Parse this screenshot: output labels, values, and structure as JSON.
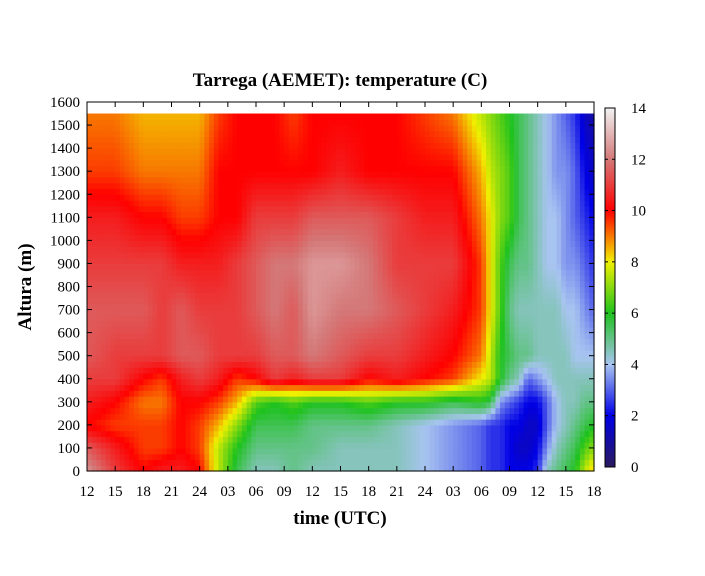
{
  "chart_data": {
    "type": "heatmap",
    "title": "Tarrega (AEMET): temperature (C)",
    "xlabel": "time (UTC)",
    "ylabel": "Altura (m)",
    "x_ticks": [
      "12",
      "15",
      "18",
      "21",
      "24",
      "03",
      "06",
      "09",
      "12",
      "15",
      "18",
      "21",
      "24",
      "03",
      "06",
      "09",
      "12",
      "15",
      "18"
    ],
    "x_range_hours": [
      0,
      54
    ],
    "ylim": [
      0,
      1600
    ],
    "y_ticks": [
      0,
      100,
      200,
      300,
      400,
      500,
      600,
      700,
      800,
      900,
      1000,
      1100,
      1200,
      1300,
      1400,
      1500,
      1600
    ],
    "data_top_altitude": 1550,
    "colorbar": {
      "range": [
        0,
        14
      ],
      "ticks": [
        0,
        2,
        4,
        6,
        8,
        10,
        12,
        14
      ],
      "colors": [
        "#2a1a5e",
        "#0000e6",
        "#a8c4f0",
        "#1ec21e",
        "#f0f000",
        "#ff0000",
        "#d47878",
        "#f2f2f2"
      ]
    },
    "temperature_profiles": {
      "altitudes": [
        0,
        100,
        200,
        300,
        400,
        500,
        700,
        900,
        1100,
        1300,
        1550
      ],
      "times": [
        0,
        3,
        6,
        8,
        10,
        12,
        14,
        16,
        18,
        20,
        22,
        24,
        27,
        30,
        33,
        36,
        39,
        42,
        43,
        44,
        45,
        46,
        47,
        48,
        49,
        50,
        51,
        52,
        53,
        54
      ],
      "columns": [
        [
          12.5,
          11.5,
          10.0,
          10.5,
          11.0,
          11.5,
          11.5,
          11.0,
          10.5,
          9.5,
          9.0
        ],
        [
          11.0,
          10.5,
          9.5,
          10.0,
          11.0,
          11.0,
          11.5,
          11.0,
          10.5,
          9.5,
          9.0
        ],
        [
          10.0,
          9.5,
          9.5,
          9.0,
          10.0,
          11.0,
          11.5,
          11.0,
          10.0,
          9.0,
          8.5
        ],
        [
          10.5,
          9.5,
          9.5,
          9.0,
          9.5,
          11.0,
          11.0,
          11.0,
          10.0,
          9.0,
          8.5
        ],
        [
          10.5,
          10.0,
          10.0,
          10.0,
          10.5,
          11.5,
          11.5,
          10.5,
          9.5,
          9.0,
          8.5
        ],
        [
          10.0,
          9.5,
          9.5,
          10.0,
          11.0,
          11.5,
          11.0,
          10.5,
          9.5,
          9.0,
          8.5
        ],
        [
          7.5,
          7.5,
          8.5,
          9.5,
          10.5,
          11.0,
          11.0,
          10.5,
          10.0,
          10.0,
          9.5
        ],
        [
          5.5,
          6.0,
          7.0,
          8.5,
          9.5,
          11.0,
          11.0,
          11.0,
          10.0,
          10.0,
          10.0
        ],
        [
          4.5,
          5.0,
          5.5,
          6.5,
          10.0,
          11.0,
          11.5,
          11.5,
          11.0,
          10.0,
          10.0
        ],
        [
          4.5,
          5.0,
          5.5,
          6.0,
          11.0,
          11.5,
          12.0,
          12.0,
          11.0,
          10.0,
          10.0
        ],
        [
          5.0,
          5.0,
          5.5,
          6.5,
          10.5,
          11.5,
          11.5,
          12.0,
          11.0,
          10.0,
          9.5
        ],
        [
          4.5,
          5.0,
          5.0,
          6.0,
          11.0,
          12.0,
          12.5,
          12.5,
          11.5,
          10.0,
          10.0
        ],
        [
          4.5,
          4.5,
          5.0,
          6.0,
          11.0,
          11.5,
          12.0,
          12.5,
          11.5,
          10.5,
          10.0
        ],
        [
          4.5,
          4.5,
          5.0,
          6.5,
          10.0,
          11.0,
          12.0,
          12.0,
          11.5,
          10.0,
          10.0
        ],
        [
          4.5,
          4.5,
          4.5,
          6.0,
          10.5,
          11.0,
          11.5,
          11.0,
          11.0,
          10.0,
          10.0
        ],
        [
          4.0,
          4.0,
          4.0,
          6.0,
          10.0,
          10.5,
          11.0,
          11.0,
          10.5,
          10.0,
          9.5
        ],
        [
          3.5,
          3.5,
          3.5,
          5.5,
          9.5,
          10.0,
          10.5,
          11.0,
          10.5,
          10.0,
          9.0
        ],
        [
          3.0,
          3.0,
          3.0,
          6.0,
          8.0,
          9.0,
          9.5,
          9.5,
          9.0,
          8.5,
          7.5
        ],
        [
          2.5,
          2.5,
          2.5,
          5.5,
          7.5,
          7.5,
          8.0,
          8.0,
          8.0,
          7.5,
          7.0
        ],
        [
          2.5,
          2.5,
          2.5,
          3.5,
          6.0,
          6.0,
          6.5,
          6.5,
          7.0,
          7.0,
          6.5
        ],
        [
          2.0,
          2.0,
          2.0,
          3.0,
          5.0,
          5.5,
          5.0,
          5.5,
          6.5,
          6.5,
          6.0
        ],
        [
          2.0,
          1.5,
          2.0,
          2.5,
          4.5,
          5.0,
          4.5,
          5.0,
          5.5,
          5.5,
          5.5
        ],
        [
          2.0,
          1.5,
          1.5,
          2.0,
          3.0,
          5.0,
          4.5,
          5.0,
          5.0,
          5.0,
          5.0
        ],
        [
          2.5,
          2.0,
          1.5,
          2.0,
          3.5,
          4.5,
          4.5,
          4.5,
          4.5,
          4.5,
          4.5
        ],
        [
          4.5,
          3.5,
          3.0,
          3.0,
          4.0,
          4.5,
          4.5,
          4.0,
          4.0,
          4.0,
          4.0
        ],
        [
          5.0,
          4.5,
          4.0,
          4.0,
          4.5,
          4.5,
          4.5,
          4.0,
          4.0,
          3.5,
          3.5
        ],
        [
          5.5,
          5.0,
          4.5,
          4.5,
          4.5,
          4.5,
          4.0,
          3.5,
          3.5,
          3.5,
          3.0
        ],
        [
          6.0,
          5.5,
          5.0,
          4.5,
          4.5,
          4.0,
          4.0,
          3.5,
          3.0,
          3.0,
          2.5
        ],
        [
          7.5,
          6.5,
          5.5,
          5.0,
          4.5,
          4.0,
          3.5,
          3.0,
          2.5,
          2.0,
          1.5
        ],
        [
          8.5,
          7.0,
          6.0,
          5.0,
          4.5,
          4.0,
          3.0,
          2.5,
          2.0,
          1.5,
          1.0
        ]
      ]
    },
    "grid": false,
    "legend": "none"
  }
}
